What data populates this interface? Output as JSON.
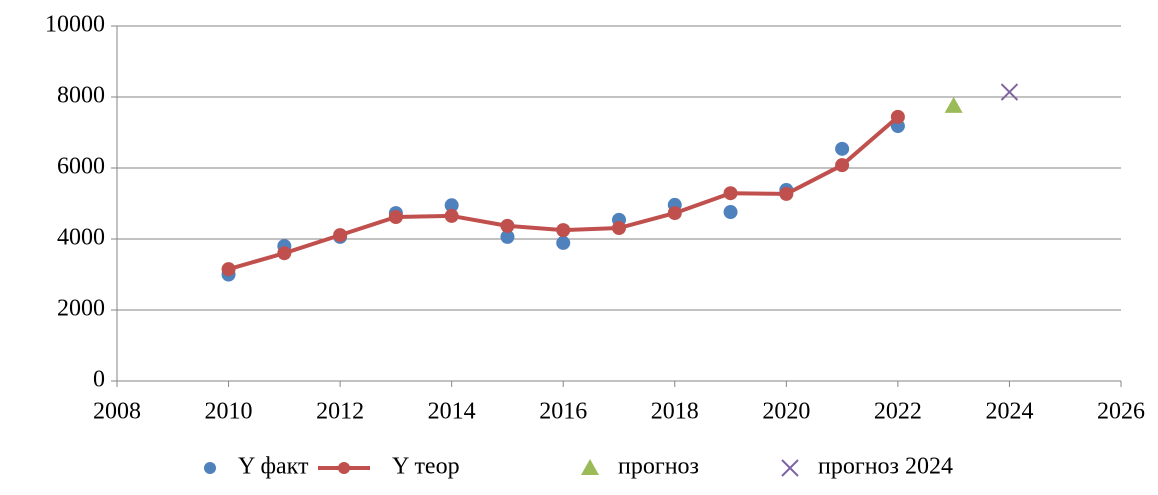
{
  "chart_data": {
    "type": "scatter",
    "xlim": [
      2008,
      2026
    ],
    "xticks": [
      2008,
      2010,
      2012,
      2014,
      2016,
      2018,
      2020,
      2022,
      2024,
      2026
    ],
    "ylim": [
      0,
      10000
    ],
    "yticks": [
      0,
      2000,
      4000,
      6000,
      8000,
      10000
    ],
    "grid": true,
    "legend": "bottom",
    "series": [
      {
        "name": "Y факт",
        "color": "#4f81bd",
        "marker": "circle",
        "line": false,
        "x": [
          2010,
          2011,
          2012,
          2013,
          2014,
          2015,
          2016,
          2017,
          2018,
          2019,
          2020,
          2021,
          2022
        ],
        "values": [
          3000,
          3800,
          4060,
          4730,
          4950,
          4060,
          3890,
          4540,
          4960,
          4760,
          5380,
          6540,
          7180
        ]
      },
      {
        "name": "Y теор",
        "color": "#c0504d",
        "marker": "circle",
        "line": true,
        "x": [
          2010,
          2011,
          2012,
          2013,
          2014,
          2015,
          2016,
          2017,
          2018,
          2019,
          2020,
          2021,
          2022
        ],
        "values": [
          3150,
          3600,
          4110,
          4620,
          4650,
          4370,
          4250,
          4310,
          4730,
          5290,
          5270,
          6080,
          7440
        ]
      },
      {
        "name": "прогноз",
        "color": "#9bbb59",
        "marker": "triangle",
        "line": false,
        "x": [
          2023
        ],
        "values": [
          7750
        ]
      },
      {
        "name": "прогноз 2024",
        "color": "#8064a2",
        "marker": "x",
        "line": false,
        "x": [
          2024
        ],
        "values": [
          8140
        ]
      }
    ]
  }
}
